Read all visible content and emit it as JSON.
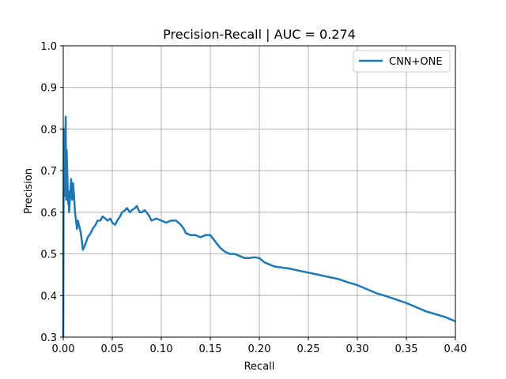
{
  "chart_data": {
    "type": "line",
    "title": "Precision-Recall | AUC = 0.274",
    "xlabel": "Recall",
    "ylabel": "Precision",
    "xlim": [
      0.0,
      0.4
    ],
    "ylim": [
      0.3,
      1.0
    ],
    "xticks": [
      "0.00",
      "0.05",
      "0.10",
      "0.15",
      "0.20",
      "0.25",
      "0.30",
      "0.35",
      "0.40"
    ],
    "yticks": [
      "0.3",
      "0.4",
      "0.5",
      "0.6",
      "0.7",
      "0.8",
      "0.9",
      "1.0"
    ],
    "grid": true,
    "legend_position": "top-right",
    "series": [
      {
        "name": "CNN+ONE",
        "color": "#1f77b4",
        "x": [
          0.0,
          0.0005,
          0.001,
          0.0015,
          0.002,
          0.0025,
          0.003,
          0.0035,
          0.004,
          0.0045,
          0.005,
          0.0055,
          0.006,
          0.007,
          0.008,
          0.009,
          0.01,
          0.011,
          0.012,
          0.013,
          0.014,
          0.015,
          0.016,
          0.017,
          0.018,
          0.019,
          0.02,
          0.022,
          0.025,
          0.028,
          0.03,
          0.033,
          0.035,
          0.038,
          0.04,
          0.043,
          0.045,
          0.048,
          0.05,
          0.053,
          0.055,
          0.058,
          0.06,
          0.063,
          0.065,
          0.068,
          0.07,
          0.073,
          0.075,
          0.078,
          0.08,
          0.083,
          0.085,
          0.088,
          0.09,
          0.095,
          0.1,
          0.105,
          0.11,
          0.115,
          0.12,
          0.123,
          0.125,
          0.13,
          0.135,
          0.14,
          0.145,
          0.15,
          0.155,
          0.16,
          0.165,
          0.17,
          0.175,
          0.18,
          0.185,
          0.19,
          0.195,
          0.2,
          0.205,
          0.21,
          0.215,
          0.22,
          0.23,
          0.24,
          0.25,
          0.26,
          0.27,
          0.28,
          0.29,
          0.3,
          0.31,
          0.32,
          0.33,
          0.34,
          0.35,
          0.36,
          0.37,
          0.38,
          0.39,
          0.4
        ],
        "values": [
          0.3,
          0.8,
          0.73,
          0.64,
          0.76,
          0.83,
          0.63,
          0.75,
          0.7,
          0.66,
          0.62,
          0.65,
          0.6,
          0.64,
          0.68,
          0.63,
          0.67,
          0.64,
          0.6,
          0.58,
          0.56,
          0.58,
          0.57,
          0.56,
          0.55,
          0.53,
          0.51,
          0.52,
          0.54,
          0.55,
          0.56,
          0.57,
          0.58,
          0.58,
          0.59,
          0.585,
          0.58,
          0.585,
          0.575,
          0.57,
          0.58,
          0.59,
          0.6,
          0.605,
          0.61,
          0.6,
          0.605,
          0.61,
          0.615,
          0.6,
          0.6,
          0.605,
          0.6,
          0.59,
          0.58,
          0.585,
          0.58,
          0.575,
          0.58,
          0.58,
          0.57,
          0.56,
          0.55,
          0.545,
          0.545,
          0.54,
          0.545,
          0.545,
          0.53,
          0.515,
          0.505,
          0.5,
          0.5,
          0.495,
          0.49,
          0.49,
          0.492,
          0.49,
          0.48,
          0.475,
          0.47,
          0.468,
          0.465,
          0.46,
          0.455,
          0.45,
          0.445,
          0.44,
          0.432,
          0.425,
          0.415,
          0.405,
          0.398,
          0.39,
          0.382,
          0.372,
          0.362,
          0.355,
          0.348,
          0.338
        ]
      }
    ]
  }
}
